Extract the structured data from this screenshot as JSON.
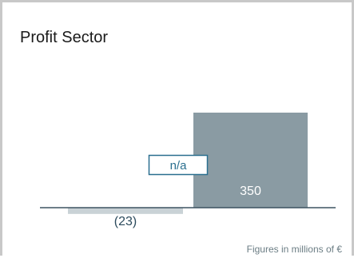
{
  "chart_data": {
    "type": "bar",
    "title": "Profit Sector",
    "categories": [
      "",
      ""
    ],
    "values": [
      -23,
      350
    ],
    "data_labels": [
      "(23)",
      "350"
    ],
    "annotation": "n/a",
    "footnote": "Figures in millions of €",
    "colors": {
      "negative_bar": "#c9d2d6",
      "positive_bar": "#8a9ba3",
      "negative_label": "#2b4a5c",
      "positive_label": "#ffffff",
      "baseline": "#3d5361",
      "annotation_border": "#2a6f8f",
      "annotation_text": "#2a6f8f"
    }
  }
}
